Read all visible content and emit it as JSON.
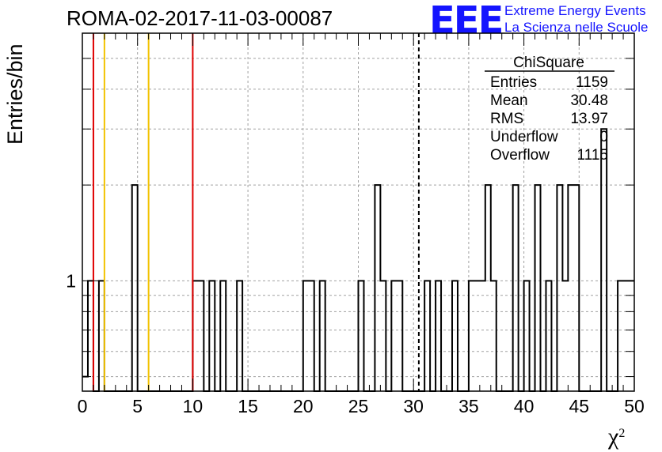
{
  "header": {
    "run_title": "ROMA-02-2017-11-03-00087",
    "logo_text": "EEE",
    "logo_line1": "Extreme Energy Events",
    "logo_line2": "La Scienza nelle Scuole"
  },
  "stats": {
    "name": "ChiSquare",
    "rows": [
      {
        "label": "Entries",
        "value": "1159"
      },
      {
        "label": "Mean",
        "value": "30.48"
      },
      {
        "label": "RMS",
        "value": "13.97"
      },
      {
        "label": "Underflow",
        "value": "0"
      },
      {
        "label": "Overflow",
        "value": "1115"
      }
    ]
  },
  "colors": {
    "red_line": "#e00000",
    "yellow_line": "#f2c200",
    "histogram": "#000000",
    "grid": "#a0a0a0",
    "logo": "#1414ff"
  },
  "chart_data": {
    "type": "bar",
    "title": "ROMA-02-2017-11-03-00087",
    "xlabel": "χ",
    "xlabel_superscript": "2",
    "ylabel": "Entries/bin",
    "xlim": [
      0,
      50
    ],
    "ylim": [
      0.45,
      6
    ],
    "log_y": true,
    "grid": true,
    "bin_width": 0.5,
    "x_ticks": [
      0,
      5,
      10,
      15,
      20,
      25,
      30,
      35,
      40,
      45,
      50
    ],
    "y_tick_labels": [
      {
        "value": 1,
        "label": "1"
      }
    ],
    "bins": [
      {
        "x": 0.0,
        "y": 0.5
      },
      {
        "x": 0.5,
        "y": 1
      },
      {
        "x": 1.5,
        "y": 1
      },
      {
        "x": 4.5,
        "y": 2
      },
      {
        "x": 10.0,
        "y": 1
      },
      {
        "x": 10.5,
        "y": 1
      },
      {
        "x": 11.5,
        "y": 1
      },
      {
        "x": 12.5,
        "y": 1
      },
      {
        "x": 14.0,
        "y": 1
      },
      {
        "x": 20.0,
        "y": 1
      },
      {
        "x": 20.5,
        "y": 1
      },
      {
        "x": 21.5,
        "y": 1
      },
      {
        "x": 25.0,
        "y": 1
      },
      {
        "x": 26.5,
        "y": 2
      },
      {
        "x": 27.0,
        "y": 1
      },
      {
        "x": 28.0,
        "y": 1
      },
      {
        "x": 28.5,
        "y": 1
      },
      {
        "x": 31.0,
        "y": 1
      },
      {
        "x": 32.0,
        "y": 1
      },
      {
        "x": 33.5,
        "y": 1
      },
      {
        "x": 35.0,
        "y": 1
      },
      {
        "x": 35.5,
        "y": 1
      },
      {
        "x": 36.0,
        "y": 1
      },
      {
        "x": 36.5,
        "y": 2
      },
      {
        "x": 37.0,
        "y": 1
      },
      {
        "x": 39.0,
        "y": 2
      },
      {
        "x": 40.0,
        "y": 1
      },
      {
        "x": 41.0,
        "y": 2
      },
      {
        "x": 42.0,
        "y": 1
      },
      {
        "x": 43.0,
        "y": 2
      },
      {
        "x": 43.5,
        "y": 1
      },
      {
        "x": 44.0,
        "y": 2
      },
      {
        "x": 44.5,
        "y": 2
      },
      {
        "x": 47.0,
        "y": 3
      },
      {
        "x": 48.5,
        "y": 1
      },
      {
        "x": 49.0,
        "y": 1
      },
      {
        "x": 49.5,
        "y": 1
      }
    ],
    "vertical_lines": [
      {
        "x": 1,
        "color": "red"
      },
      {
        "x": 2,
        "color": "yellow"
      },
      {
        "x": 6,
        "color": "yellow"
      },
      {
        "x": 10,
        "color": "red"
      },
      {
        "x": 30.48,
        "color": "black-dashed"
      }
    ]
  }
}
